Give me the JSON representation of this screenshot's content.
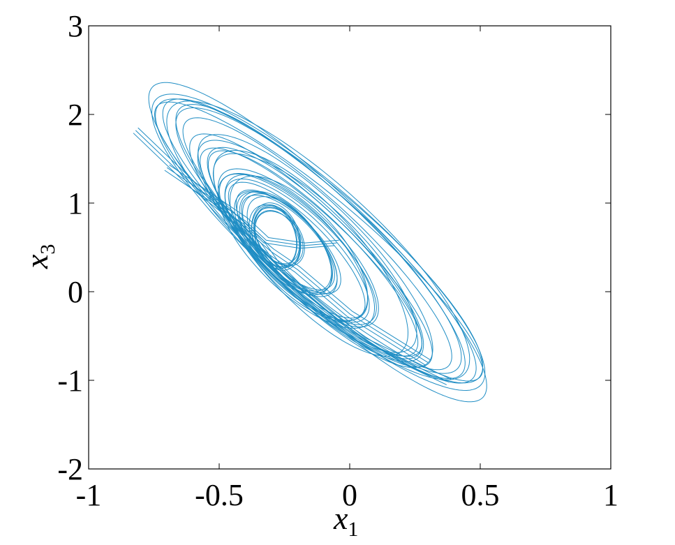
{
  "chart_data": {
    "type": "line",
    "title": "",
    "xlabel": {
      "base": "x",
      "sub": "1"
    },
    "ylabel": {
      "base": "x",
      "sub": "3"
    },
    "xlim": [
      -1,
      1
    ],
    "ylim": [
      -2,
      3
    ],
    "x_ticks": [
      -1,
      -0.5,
      0,
      0.5,
      1
    ],
    "x_tick_labels": [
      "-1",
      "-0.5",
      "0",
      "0.5",
      "1"
    ],
    "y_ticks": [
      -2,
      -1,
      0,
      1,
      2,
      3
    ],
    "y_tick_labels": [
      "-2",
      "-1",
      "0",
      "1",
      "2",
      "3"
    ],
    "grid": false,
    "legend": "none",
    "series_color": "#1f8dc4",
    "series": [
      {
        "attractor": "double-scroll",
        "orbit_groups": [
          {
            "center": [
              -0.28,
              0.62
            ],
            "a": 0.11,
            "b": 0.1,
            "tilt_deg": -26,
            "count": 8
          },
          {
            "center": [
              -0.24,
              0.55
            ],
            "a": 0.24,
            "b": 0.14,
            "tilt_deg": -34,
            "count": 7
          },
          {
            "center": [
              -0.2,
              0.48
            ],
            "a": 0.38,
            "b": 0.17,
            "tilt_deg": -36,
            "count": 7
          },
          {
            "center": [
              -0.14,
              0.45
            ],
            "a": 0.58,
            "b": 0.21,
            "tilt_deg": -37,
            "count": 8
          },
          {
            "center": [
              -0.12,
              0.56
            ],
            "a": 0.8,
            "b": 0.23,
            "tilt_deg": -36,
            "count": 9
          }
        ],
        "sample_points": [
          {
            "x": -0.82,
            "y": 1.82
          },
          {
            "x": -0.68,
            "y": 2.03
          },
          {
            "x": -0.3,
            "y": 0.62
          },
          {
            "x": -0.1,
            "y": 0.55
          },
          {
            "x": 0.38,
            "y": -1.02
          },
          {
            "x": 0.53,
            "y": -0.7
          }
        ]
      }
    ]
  }
}
